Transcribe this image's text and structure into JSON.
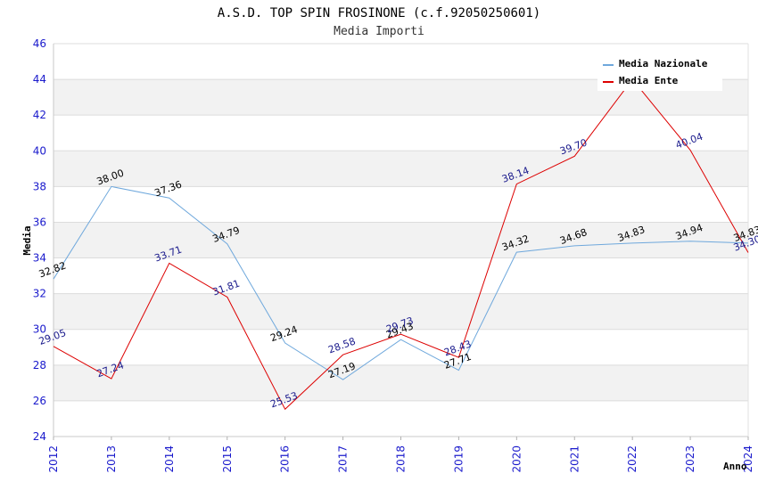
{
  "chart_data": {
    "type": "line",
    "title": "A.S.D. TOP SPIN FROSINONE (c.f.92050250601)",
    "subtitle": "Media Importi",
    "xlabel": "Anno",
    "ylabel": "Media",
    "ylim": [
      24,
      46
    ],
    "yticks": [
      24,
      26,
      28,
      30,
      32,
      34,
      36,
      38,
      40,
      42,
      44,
      46
    ],
    "categories": [
      "2012",
      "2013",
      "2014",
      "2015",
      "2016",
      "2017",
      "2018",
      "2019",
      "2020",
      "2021",
      "2022",
      "2023",
      "2024"
    ],
    "legend_position": "top-right",
    "colors": {
      "nazionale": "#6fa8dc",
      "ente": "#dd0000",
      "label_nazionale": "#000000",
      "label_ente": "#1a1a8c",
      "band": "#f2f2f2",
      "tick": "#1a1acc"
    },
    "series": [
      {
        "name": "Media Nazionale",
        "key": "nazionale",
        "values": [
          32.82,
          38.0,
          37.36,
          34.79,
          29.24,
          27.19,
          29.43,
          27.71,
          34.32,
          34.68,
          34.83,
          34.94,
          34.83
        ],
        "labels": [
          "32.82",
          "38.00",
          "37.36",
          "34.79",
          "29.24",
          "27.19",
          "29.43",
          "27.71",
          "34.32",
          "34.68",
          "34.83",
          "34.94",
          "34.83"
        ]
      },
      {
        "name": "Media Ente",
        "key": "ente",
        "values": [
          29.05,
          27.24,
          33.71,
          31.81,
          25.53,
          28.58,
          29.73,
          28.43,
          38.14,
          39.7,
          44.0,
          40.04,
          34.3
        ],
        "labels": [
          "29.05",
          "27.24",
          "33.71",
          "31.81",
          "25.53",
          "28.58",
          "29.73",
          "28.43",
          "38.14",
          "39.70",
          "",
          "40.04",
          "34.30"
        ]
      }
    ]
  }
}
